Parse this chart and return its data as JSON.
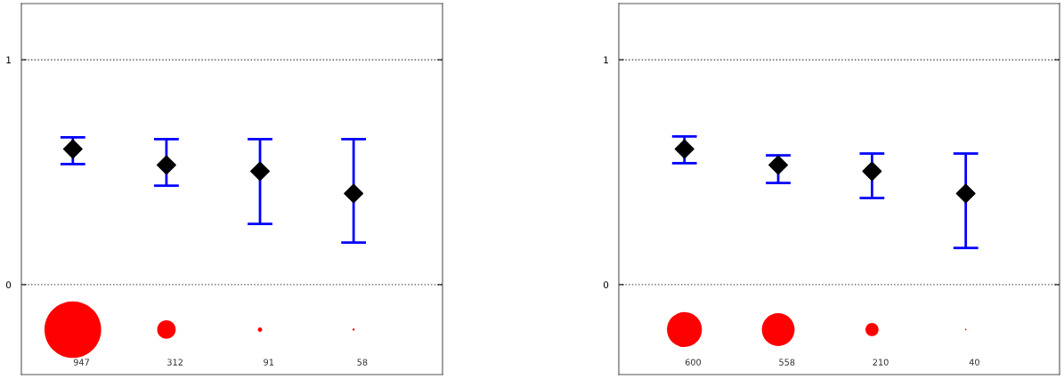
{
  "chart_data": [
    {
      "type": "scatter",
      "categories": [
        null,
        null,
        null,
        null
      ],
      "ylim": [
        -0.4,
        1.25
      ],
      "yticks": [
        0,
        1
      ],
      "grid": "y",
      "tick_labels": "y",
      "marker": "diamond",
      "series": [
        {
          "color": "#000000",
          "values": [
            0.603,
            0.532,
            0.504,
            0.405
          ],
          "errors": [
            [
              0.536,
              0.655
            ],
            [
              0.44,
              0.647
            ],
            [
              0.27,
              0.647
            ],
            [
              0.187,
              0.647
            ]
          ]
        },
        {
          "type": "bubble",
          "color": "#ff0000",
          "marker": "circle",
          "values": [
            -0.2,
            -0.2,
            -0.2,
            -0.2
          ],
          "sizes": [
            1,
            0.107,
            0.006,
            0.0015
          ]
        }
      ],
      "annotations": [
        "947",
        "312",
        "91",
        "58"
      ]
    },
    {
      "type": "scatter",
      "categories": [
        null,
        null,
        null,
        null
      ],
      "ylim": [
        -0.4,
        1.25
      ],
      "yticks": [
        0,
        1
      ],
      "grid": "y",
      "tick_labels": "y",
      "marker": "diamond",
      "series": [
        {
          "color": "#000000",
          "values": [
            0.603,
            0.532,
            0.504,
            0.405
          ],
          "errors": [
            [
              0.54,
              0.659
            ],
            [
              0.452,
              0.575
            ],
            [
              0.385,
              0.583
            ],
            [
              0.163,
              0.583
            ]
          ]
        },
        {
          "type": "bubble",
          "color": "#ff0000",
          "marker": "circle",
          "values": [
            -0.2,
            -0.2,
            -0.2,
            -0.2
          ],
          "sizes": [
            1,
            0.88,
            0.14,
            0.002
          ]
        }
      ],
      "annotations": [
        "600",
        "558",
        "210",
        "40"
      ]
    }
  ]
}
